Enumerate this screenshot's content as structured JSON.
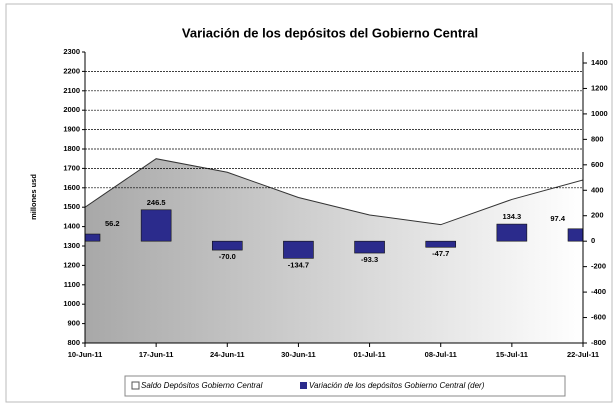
{
  "chart_data": {
    "type": "area-bar",
    "title": "Variación de los depósitos del Gobierno Central",
    "y_label": "millones usd",
    "categories": [
      "10-Jun-11",
      "17-Jun-11",
      "24-Jun-11",
      "30-Jun-11",
      "01-Jul-11",
      "08-Jul-11",
      "15-Jul-11",
      "22-Jul-11"
    ],
    "series": [
      {
        "name": "Saldo Depósitos Gobierno Central",
        "color": "#b0b0b0",
        "values": [
          1500,
          1750,
          1680,
          1550,
          1460,
          1410,
          1540,
          1640
        ]
      },
      {
        "name": "Variación de los depósitos Gobierno Central (der)",
        "color": "#2b2b8c",
        "axis": "y2",
        "values": [
          56.2,
          246.5,
          -70.0,
          -134.7,
          -93.3,
          -47.7,
          134.3,
          97.4
        ],
        "value_labels": [
          "56.2",
          "246.5",
          "-70.0",
          "-134.7",
          "-93.3",
          "-47.7",
          "134.3",
          "97.4"
        ]
      }
    ],
    "ylim": [
      800,
      2300
    ],
    "yticks": [
      800,
      900,
      1000,
      1100,
      1200,
      1300,
      1400,
      1500,
      1600,
      1700,
      1800,
      1900,
      2000,
      2100,
      2200,
      2300
    ],
    "y2lim": [
      -800,
      1400
    ],
    "y2ticks": [
      -800,
      -600,
      -400,
      -200,
      0,
      200,
      400,
      600,
      800,
      1000,
      1200,
      1400
    ],
    "grid": true
  }
}
